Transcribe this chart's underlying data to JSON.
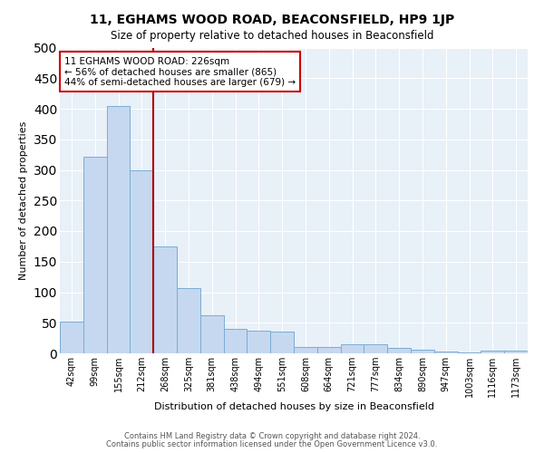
{
  "title1": "11, EGHAMS WOOD ROAD, BEACONSFIELD, HP9 1JP",
  "title2": "Size of property relative to detached houses in Beaconsfield",
  "xlabel": "Distribution of detached houses by size in Beaconsfield",
  "ylabel": "Number of detached properties",
  "categories": [
    "42sqm",
    "99sqm",
    "155sqm",
    "212sqm",
    "268sqm",
    "325sqm",
    "381sqm",
    "438sqm",
    "494sqm",
    "551sqm",
    "608sqm",
    "664sqm",
    "721sqm",
    "777sqm",
    "834sqm",
    "890sqm",
    "947sqm",
    "1003sqm",
    "1116sqm",
    "1173sqm"
  ],
  "values": [
    52,
    322,
    405,
    300,
    175,
    107,
    62,
    40,
    37,
    35,
    11,
    10,
    15,
    15,
    9,
    6,
    3,
    1,
    5,
    4
  ],
  "bar_color": "#c5d8f0",
  "bar_edge_color": "#7aadd4",
  "background_color": "#e8f0f8",
  "grid_color": "#ffffff",
  "vline_color": "#aa0000",
  "vline_x_index": 3,
  "annotation_text1": "11 EGHAMS WOOD ROAD: 226sqm",
  "annotation_text2": "← 56% of detached houses are smaller (865)",
  "annotation_text3": "44% of semi-detached houses are larger (679) →",
  "annotation_box_color": "#ffffff",
  "annotation_box_edge_color": "#cc0000",
  "ylim": [
    0,
    500
  ],
  "yticks": [
    0,
    50,
    100,
    150,
    200,
    250,
    300,
    350,
    400,
    450,
    500
  ],
  "footer1": "Contains HM Land Registry data © Crown copyright and database right 2024.",
  "footer2": "Contains public sector information licensed under the Open Government Licence v3.0.",
  "fig_bg": "#ffffff"
}
